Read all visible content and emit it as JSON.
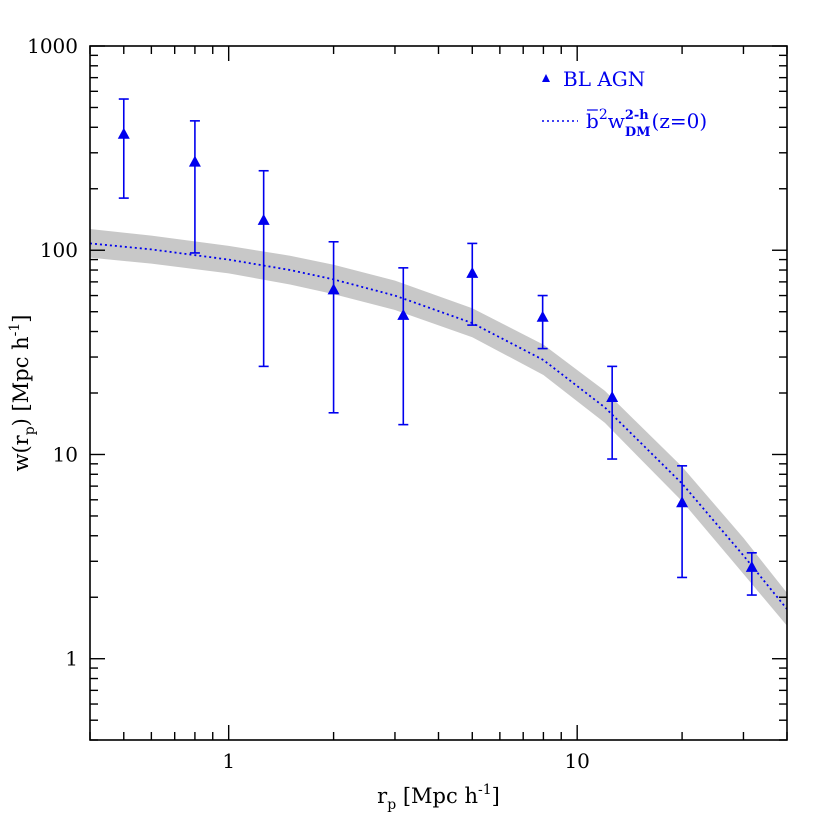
{
  "chart_data": {
    "type": "scatter",
    "title": "",
    "xscale": "log",
    "yscale": "log",
    "xlim": [
      0.4,
      40
    ],
    "ylim": [
      0.4,
      1000
    ],
    "grid": false,
    "legend_position": "top-right",
    "x_ticks": [
      {
        "value": 1,
        "label": "1"
      },
      {
        "value": 10,
        "label": "10"
      }
    ],
    "y_ticks": [
      {
        "value": 1,
        "label": "1"
      },
      {
        "value": 10,
        "label": "10"
      },
      {
        "value": 100,
        "label": "100"
      },
      {
        "value": 1000,
        "label": "1000"
      }
    ],
    "xlabel": {
      "main": "r",
      "sub": "p",
      "rest": " [Mpc h",
      "sup": "-1",
      "end": "]"
    },
    "ylabel": {
      "main": "w(r",
      "sub": "p",
      "rest": ") [Mpc h",
      "sup": "-1",
      "end": "]"
    },
    "series": [
      {
        "name": "BL AGN",
        "kind": "points-with-errorbars",
        "marker": "triangle",
        "color": "#0000ee",
        "points": [
          {
            "x": 0.5,
            "y": 370,
            "ylo": 180,
            "yhi": 550
          },
          {
            "x": 0.8,
            "y": 270,
            "ylo": 97,
            "yhi": 430
          },
          {
            "x": 1.26,
            "y": 140,
            "ylo": 27,
            "yhi": 245
          },
          {
            "x": 2.0,
            "y": 64,
            "ylo": 16,
            "yhi": 110
          },
          {
            "x": 3.17,
            "y": 48,
            "ylo": 14,
            "yhi": 82
          },
          {
            "x": 5.0,
            "y": 77,
            "ylo": 43,
            "yhi": 108
          },
          {
            "x": 7.96,
            "y": 47,
            "ylo": 33,
            "yhi": 60
          },
          {
            "x": 12.6,
            "y": 19,
            "ylo": 9.5,
            "yhi": 27
          },
          {
            "x": 20.0,
            "y": 5.8,
            "ylo": 2.5,
            "yhi": 8.8
          },
          {
            "x": 31.7,
            "y": 2.8,
            "ylo": 2.05,
            "yhi": 3.3
          }
        ]
      },
      {
        "name": "b̄²w_DM^(2-h)(z=0)",
        "kind": "dotted-line-with-band",
        "color": "#0000ee",
        "band_color": "#c8c8c8",
        "x": [
          0.4,
          0.6,
          1.0,
          1.5,
          2.0,
          3.0,
          5.0,
          8.0,
          12.0,
          20.0,
          30.0,
          40.0
        ],
        "y": [
          108,
          101,
          90,
          80,
          72,
          60,
          44,
          29,
          17,
          7.2,
          3.2,
          1.75
        ],
        "y_lo": [
          92,
          86,
          77,
          68,
          61,
          51,
          37.5,
          24.5,
          14.3,
          5.9,
          2.6,
          1.45
        ],
        "y_hi": [
          127,
          118,
          105,
          94,
          85,
          71,
          52,
          34.5,
          20.5,
          8.7,
          3.9,
          2.1
        ]
      }
    ],
    "legend": [
      {
        "marker": "triangle",
        "label": "BL AGN"
      },
      {
        "marker": "dotted-line",
        "label_parts": {
          "base": "b",
          "sup1": "2",
          "w": "w",
          "sub": "DM",
          "sup2": "2-h",
          "rest": "(z=0)"
        }
      }
    ]
  }
}
